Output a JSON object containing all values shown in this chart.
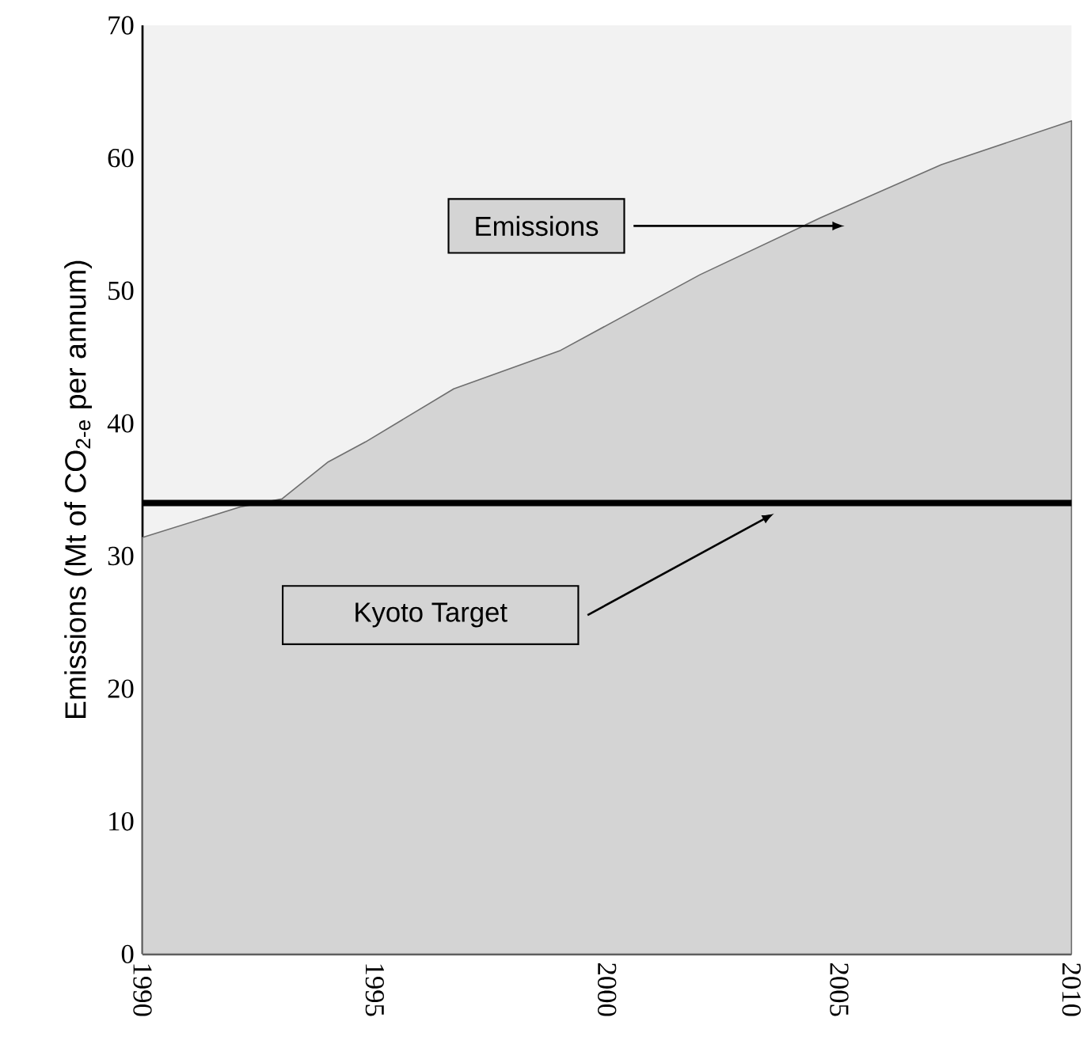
{
  "chart_data": {
    "type": "area",
    "ylabel": "Emissions (Mt of CO$_{2-e}$ per annum)",
    "x": [
      1990,
      1992.1,
      1993,
      1994,
      1994.8,
      1996.7,
      1999,
      2002,
      2004.6,
      2007.2,
      2010
    ],
    "series": [
      {
        "color": "#d4d4d4",
        "values": [
          31.4,
          33.7,
          34.3,
          37.1,
          38.6,
          42.6,
          45.5,
          51.2,
          55.5,
          59.5,
          62.8
        ]
      }
    ],
    "xlim": [
      1990,
      2010
    ],
    "xticks": [
      1990,
      1995,
      2000,
      2005,
      2010
    ],
    "ylim": [
      0,
      70
    ],
    "yticks": [
      0,
      10,
      20,
      30,
      40,
      50,
      60,
      70
    ],
    "ref_lines": [
      {
        "axis": "y",
        "value": 34,
        "label": "Kyoto Target",
        "color": "#000000"
      }
    ],
    "annotations": [
      "Emissions"
    ]
  }
}
